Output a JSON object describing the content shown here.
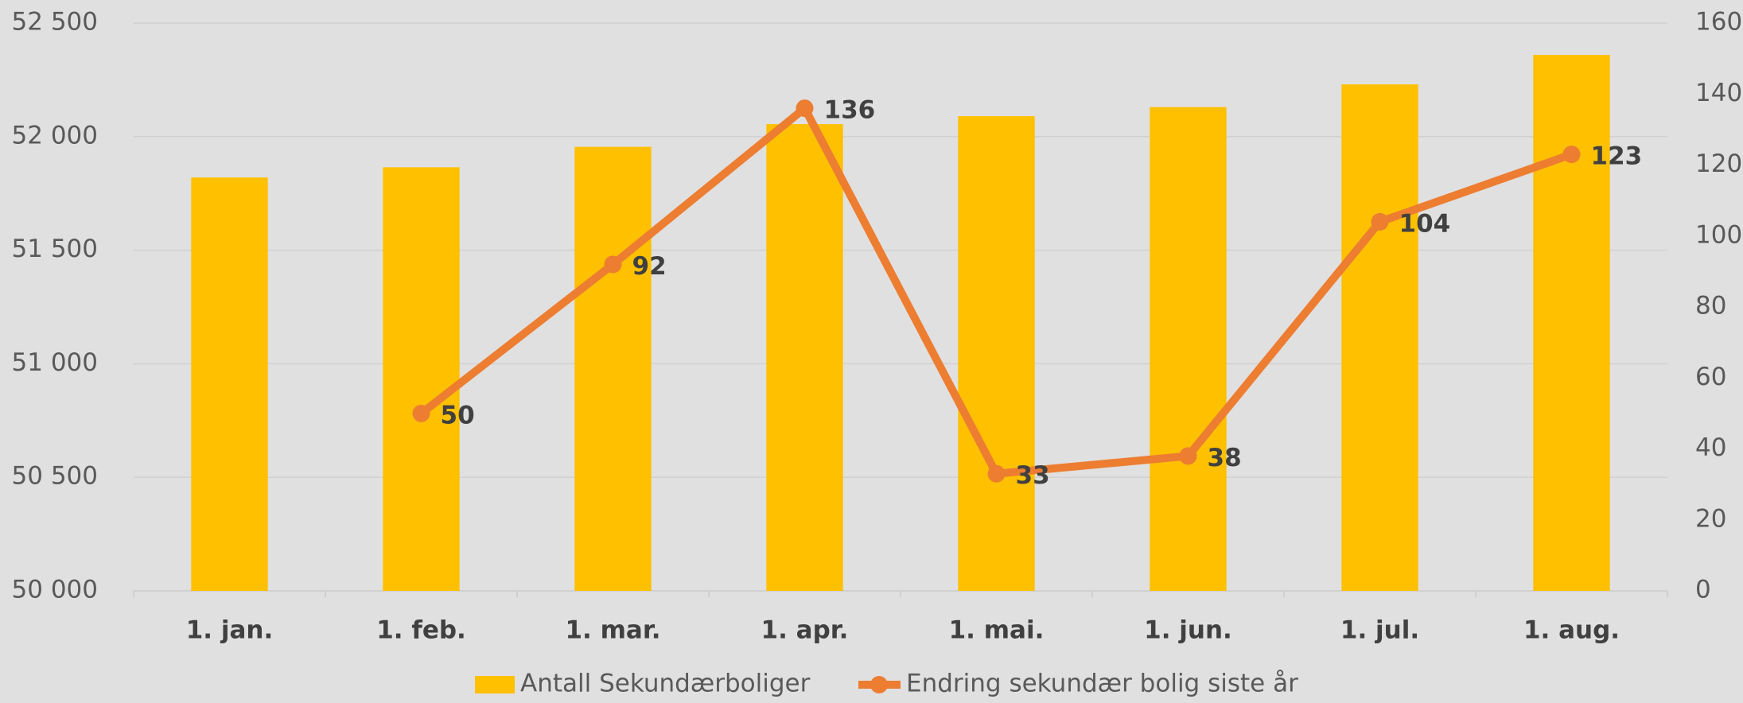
{
  "chart_data": {
    "type": "bar-line",
    "categories": [
      "1. jan.",
      "1. feb.",
      "1. mar.",
      "1. apr.",
      "1. mai.",
      "1. jun.",
      "1. jul.",
      "1. aug."
    ],
    "series": [
      {
        "name": "Antall Sekundærboliger",
        "type": "bar",
        "color": "#ffc000",
        "axis": "y",
        "values": [
          51820,
          51865,
          51955,
          52055,
          52090,
          52130,
          52230,
          52360
        ]
      },
      {
        "name": "Endring sekundær bolig siste år",
        "type": "line",
        "color": "#ed7d31",
        "axis": "y2",
        "values": [
          null,
          50,
          92,
          136,
          33,
          38,
          104,
          123
        ]
      }
    ],
    "ylim": [
      50000,
      52500
    ],
    "yticks": [
      {
        "value": 50000,
        "label": "50 000"
      },
      {
        "value": 50500,
        "label": "50 500"
      },
      {
        "value": 51000,
        "label": "51 000"
      },
      {
        "value": 51500,
        "label": "51 500"
      },
      {
        "value": 52000,
        "label": "52 000"
      },
      {
        "value": 52500,
        "label": "52 500"
      }
    ],
    "y2lim": [
      0,
      160
    ],
    "y2ticks": [
      0,
      20,
      40,
      60,
      80,
      100,
      120,
      140,
      160
    ],
    "grid": true,
    "legend": "bottom"
  }
}
